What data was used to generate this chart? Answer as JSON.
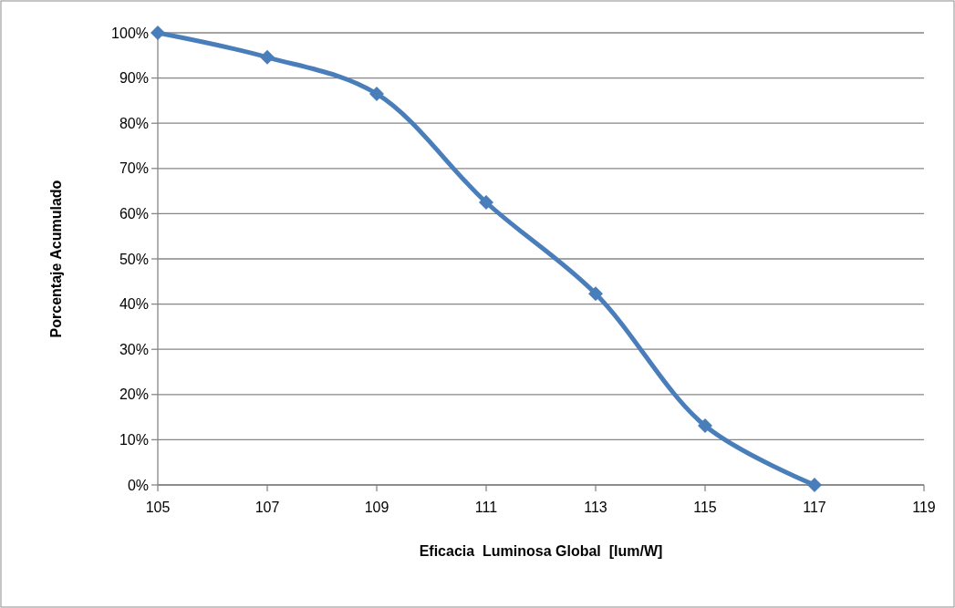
{
  "chart_data": {
    "type": "line",
    "xlabel": "Eficacia  Luminosa Global  [lum/W]",
    "ylabel": "Porcentaje Acumulado",
    "x": [
      105,
      107,
      109,
      111,
      113,
      115,
      117
    ],
    "series": [
      {
        "color": "#4a7ebb",
        "values": [
          100,
          94.6,
          86.5,
          62.5,
          42.3,
          13.1,
          0
        ]
      }
    ],
    "xlim": [
      105,
      119
    ],
    "xticks": [
      105,
      107,
      109,
      111,
      113,
      115,
      117,
      119
    ],
    "ylim": [
      0,
      100
    ],
    "yticks": [
      {
        "value": 0,
        "label": "0%"
      },
      {
        "value": 10,
        "label": "10%"
      },
      {
        "value": 20,
        "label": "20%"
      },
      {
        "value": 30,
        "label": "30%"
      },
      {
        "value": 40,
        "label": "40%"
      },
      {
        "value": 50,
        "label": "50%"
      },
      {
        "value": 60,
        "label": "60%"
      },
      {
        "value": 70,
        "label": "70%"
      },
      {
        "value": 80,
        "label": "80%"
      },
      {
        "value": 90,
        "label": "90%"
      },
      {
        "value": 100,
        "label": "100%"
      }
    ],
    "grid": "y",
    "marker": "diamond",
    "line_style": "solid"
  }
}
